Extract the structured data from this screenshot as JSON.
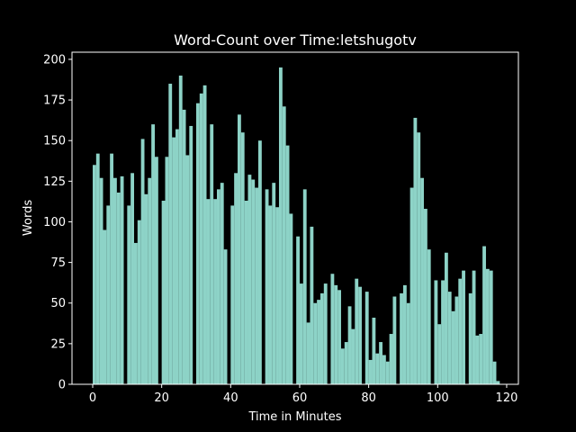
{
  "chart_data": {
    "type": "bar",
    "title": "Word-Count over Time:letshugotv",
    "xlabel": "Time in Minutes",
    "ylabel": "Words",
    "x": [
      0,
      1,
      2,
      3,
      4,
      5,
      6,
      7,
      8,
      9,
      10,
      11,
      12,
      13,
      14,
      15,
      16,
      17,
      18,
      19,
      20,
      21,
      22,
      23,
      24,
      25,
      26,
      27,
      28,
      29,
      30,
      31,
      32,
      33,
      34,
      35,
      36,
      37,
      38,
      39,
      40,
      41,
      42,
      43,
      44,
      45,
      46,
      47,
      48,
      49,
      50,
      51,
      52,
      53,
      54,
      55,
      56,
      57,
      58,
      59,
      60,
      61,
      62,
      63,
      64,
      65,
      66,
      67,
      68,
      69,
      70,
      71,
      72,
      73,
      74,
      75,
      76,
      77,
      78,
      79,
      80,
      81,
      82,
      83,
      84,
      85,
      86,
      87,
      88,
      89,
      90,
      91,
      92,
      93,
      94,
      95,
      96,
      97,
      98,
      99,
      100,
      101,
      102,
      103,
      104,
      105,
      106,
      107,
      108,
      109,
      110,
      111,
      112,
      113,
      114,
      115,
      116,
      117
    ],
    "values": [
      135,
      142,
      127,
      95,
      110,
      142,
      127,
      118,
      128,
      0,
      110,
      130,
      87,
      101,
      151,
      117,
      127,
      160,
      140,
      0,
      113,
      140,
      185,
      152,
      157,
      190,
      169,
      141,
      159,
      0,
      173,
      179,
      184,
      114,
      160,
      114,
      120,
      124,
      83,
      0,
      110,
      130,
      166,
      155,
      113,
      129,
      126,
      121,
      150,
      0,
      120,
      110,
      124,
      109,
      195,
      171,
      147,
      105,
      0,
      91,
      62,
      120,
      38,
      97,
      50,
      52,
      56,
      62,
      0,
      68,
      61,
      58,
      22,
      26,
      48,
      34,
      65,
      60,
      0,
      57,
      15,
      41,
      19,
      26,
      18,
      14,
      31,
      54,
      0,
      56,
      61,
      50,
      121,
      164,
      155,
      127,
      108,
      83,
      0,
      64,
      37,
      64,
      81,
      57,
      45,
      54,
      65,
      70,
      0,
      56,
      70,
      30,
      31,
      85,
      71,
      70,
      14,
      2
    ],
    "color": "#8dd3c7",
    "xlim": [
      -6,
      123.4
    ],
    "ylim": [
      0,
      204.4
    ],
    "xticks": [
      0,
      20,
      40,
      60,
      80,
      100,
      120
    ],
    "yticks": [
      0,
      25,
      50,
      75,
      100,
      125,
      150,
      175,
      200
    ]
  }
}
